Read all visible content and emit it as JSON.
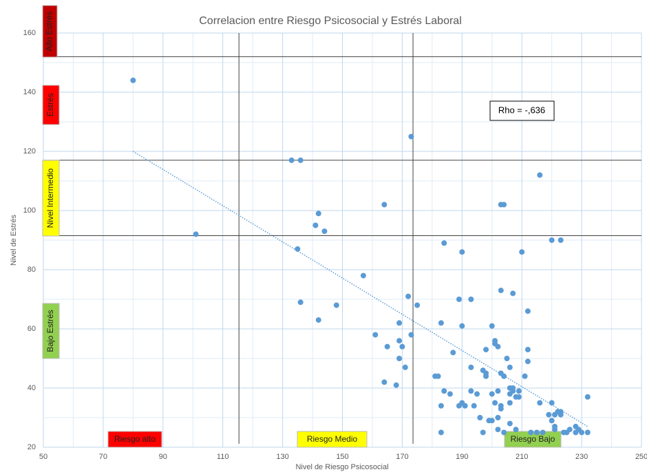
{
  "chart_data": {
    "type": "scatter",
    "title": "Correlacion entre Riesgo Psicosocial y Estrés Laboral",
    "xlabel": "Nivel de Riesgo Psicosocial",
    "ylabel": "Nivel de Estrés",
    "annotation": "Rho = -,636",
    "xlim": [
      50,
      250
    ],
    "xticks": [
      50,
      70,
      90,
      110,
      130,
      150,
      170,
      190,
      210,
      230,
      250
    ],
    "ylim": [
      20,
      160
    ],
    "yticks": [
      20,
      40,
      60,
      80,
      100,
      120,
      140,
      160
    ],
    "grid": true,
    "color": "#5b9bd5",
    "vlines": [
      115.4,
      173.6
    ],
    "hlines": [
      152,
      117,
      91.5
    ],
    "trendline": {
      "x": [
        80,
        232
      ],
      "y": [
        120,
        27
      ]
    },
    "y_bands": [
      {
        "label": "Alto Estrés",
        "color": "#c00000"
      },
      {
        "label": "Estrés",
        "color": "#ff0000"
      },
      {
        "label": "Nivel Intermedio",
        "color": "#ffff00"
      },
      {
        "label": "Bajo Estrés",
        "color": "#92d050"
      }
    ],
    "x_bands": [
      {
        "label": "Riesgo alto",
        "color": "#ff0000"
      },
      {
        "label": "Riesgo Medio",
        "color": "#ffff00"
      },
      {
        "label": "Riesgo Bajo",
        "color": "#92d050"
      }
    ],
    "x": [
      80,
      101,
      133,
      136,
      173,
      142,
      141,
      144,
      164,
      135,
      136,
      142,
      148,
      157,
      172,
      175,
      161,
      165,
      169,
      169,
      170,
      173,
      169,
      171,
      164,
      168,
      181,
      182,
      183,
      184,
      190,
      189,
      193,
      190,
      187,
      183,
      184,
      186,
      183,
      189,
      190,
      191,
      193,
      193,
      194,
      195,
      196,
      197,
      197,
      198,
      198,
      198,
      200,
      201,
      201,
      202,
      203,
      203,
      204,
      203,
      204,
      201,
      202,
      203,
      203,
      202,
      202,
      204,
      200,
      199,
      200,
      205,
      206,
      206,
      206,
      206,
      207,
      207,
      207,
      208,
      208,
      209,
      209,
      206,
      210,
      211,
      212,
      212,
      212,
      213,
      215,
      216,
      216,
      217,
      219,
      220,
      220,
      220,
      221,
      221,
      221,
      222,
      223,
      223,
      223,
      224,
      225,
      226,
      228,
      228,
      229,
      230,
      232,
      232
    ],
    "values": [
      144,
      92,
      117,
      117,
      125,
      99,
      95,
      93,
      102,
      87,
      69,
      63,
      68,
      78,
      71,
      68,
      58,
      54,
      62,
      56,
      54,
      58,
      50,
      47,
      42,
      41,
      44,
      44,
      62,
      89,
      86,
      70,
      70,
      61,
      52,
      34,
      39,
      38,
      25,
      34,
      35,
      34,
      47,
      39,
      34,
      38,
      30,
      25,
      46,
      53,
      45,
      44,
      61,
      56,
      55,
      54,
      73,
      102,
      102,
      45,
      44,
      35,
      39,
      34,
      33,
      30,
      26,
      25,
      38,
      29,
      29,
      50,
      47,
      40,
      38,
      35,
      72,
      39,
      40,
      37,
      26,
      39,
      37,
      28,
      86,
      44,
      66,
      53,
      49,
      25,
      25,
      112,
      35,
      25,
      31,
      90,
      35,
      29,
      31,
      27,
      26,
      32,
      90,
      31,
      32,
      25,
      25,
      26,
      27,
      25,
      26,
      25,
      37,
      25
    ]
  }
}
